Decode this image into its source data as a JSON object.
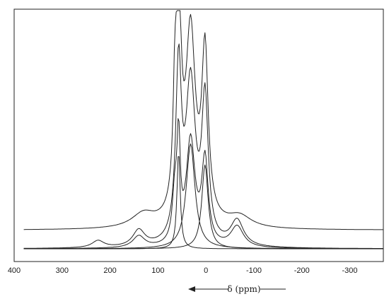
{
  "chart_data": {
    "type": "line",
    "xlabel": "δ (ppm)",
    "x_axis_reversed": true,
    "xlim": [
      400,
      -370
    ],
    "x_ticks": [
      400,
      300,
      200,
      100,
      0,
      -100,
      -200,
      -300
    ],
    "y_axis_shown": false,
    "grid": false,
    "legend": "none",
    "series": [
      {
        "peaks": [
          {
            "center": 57,
            "height": 0.88,
            "width": 7
          },
          {
            "center": 32,
            "height": 0.8,
            "width": 12
          },
          {
            "center": 2,
            "height": 0.71,
            "width": 8
          },
          {
            "center": 65,
            "height": 0.34,
            "width": 4
          }
        ],
        "baseline": 0.08,
        "broad_wings": [
          {
            "center": 130,
            "height": 0.06,
            "width": 30
          },
          {
            "center": -70,
            "height": 0.05,
            "width": 30
          }
        ]
      },
      {
        "peaks": [
          {
            "center": 57,
            "height": 0.74,
            "width": 7
          },
          {
            "center": 32,
            "height": 0.68,
            "width": 12
          },
          {
            "center": 2,
            "height": 0.6,
            "width": 8
          },
          {
            "center": 140,
            "height": 0.07,
            "width": 15
          },
          {
            "center": -65,
            "height": 0.11,
            "width": 16
          },
          {
            "center": 225,
            "height": 0.03,
            "width": 15
          }
        ],
        "baseline": 0.0
      },
      {
        "peaks": [
          {
            "center": 57,
            "height": 0.42,
            "width": 4
          },
          {
            "center": 32,
            "height": 0.45,
            "width": 11
          },
          {
            "center": 2,
            "height": 0.36,
            "width": 8
          },
          {
            "center": 65,
            "height": 0.2,
            "width": 6
          },
          {
            "center": 140,
            "height": 0.05,
            "width": 15
          },
          {
            "center": -65,
            "height": 0.09,
            "width": 16
          }
        ],
        "baseline": 0.0
      },
      {
        "peaks": [
          {
            "center": 57,
            "height": 0.42,
            "width": 4
          }
        ],
        "baseline": 0.0
      },
      {
        "peaks": [
          {
            "center": 32,
            "height": 0.45,
            "width": 11
          }
        ],
        "baseline": 0.0
      },
      {
        "peaks": [
          {
            "center": 2,
            "height": 0.36,
            "width": 8
          }
        ],
        "baseline": 0.0
      }
    ]
  }
}
